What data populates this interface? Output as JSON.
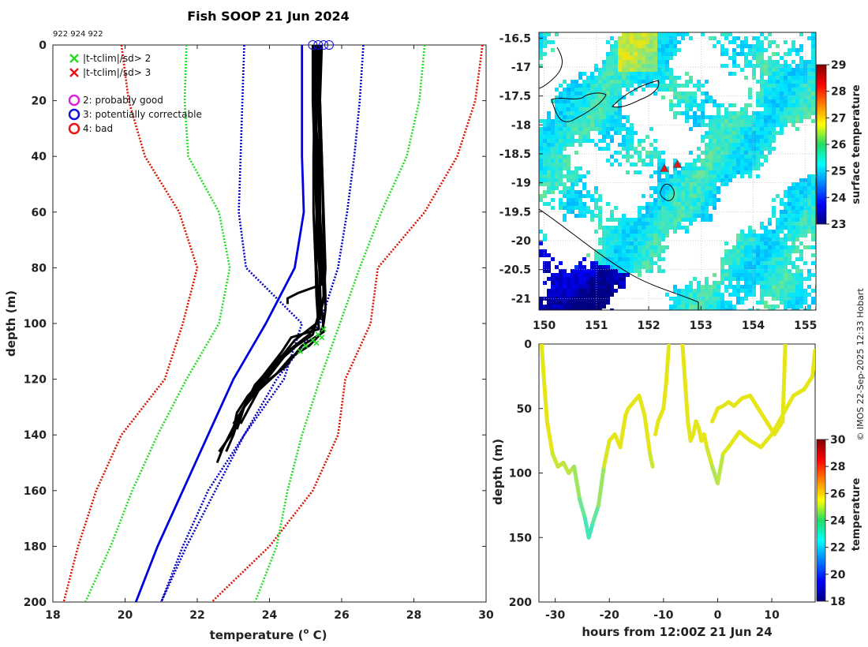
{
  "title": "Fish SOOP 21 Jun 2024",
  "platform_ids": "922 924 922",
  "credit": "© IMOS 22-Sep-2025 12:33 Hobart",
  "colors": {
    "clim_mean": "#0000e0",
    "clim_1sd": "#0000c0",
    "clim_2sd": "#22dd22",
    "clim_3sd": "#dd1100",
    "profile": "#000000",
    "flag_x2": "#22dd22",
    "flag_x3": "#ee1111",
    "good": "#dd22dd",
    "correctable": "#1010e0",
    "bad": "#ee1111"
  },
  "legend": {
    "x2": "|t-tclim|/sd> 2",
    "x3": "|t-tclim|/sd> 3",
    "q2": "2: probably good",
    "q3": "3: potentially correctable",
    "q4": "4: bad"
  },
  "chart_data": [
    {
      "type": "line",
      "name": "profile",
      "xlabel": "temperature (o C)",
      "ylabel": "depth (m)",
      "xlim": [
        18,
        30
      ],
      "ylim": [
        200,
        0
      ],
      "xticks": [
        18,
        20,
        22,
        24,
        26,
        28,
        30
      ],
      "yticks": [
        0,
        20,
        40,
        60,
        80,
        100,
        120,
        140,
        160,
        180,
        200
      ],
      "climatology": {
        "depth": [
          0,
          20,
          40,
          60,
          80,
          100,
          120,
          140,
          160,
          180,
          200
        ],
        "mean": [
          24.9,
          24.9,
          24.9,
          24.95,
          24.7,
          23.9,
          23.0,
          22.3,
          21.6,
          20.9,
          20.3
        ],
        "minus_1sd": [
          23.3,
          23.25,
          23.2,
          23.15,
          23.35,
          24.9,
          24.4,
          23.3,
          22.5,
          21.7,
          21.0
        ],
        "plus_1sd": [
          26.6,
          26.5,
          26.35,
          26.15,
          25.9,
          25.4,
          24.2,
          23.3,
          22.3,
          21.6,
          21.0
        ],
        "minus_2sd": [
          21.7,
          21.65,
          21.75,
          22.6,
          22.9,
          22.6,
          21.7,
          20.9,
          20.2,
          19.6,
          18.9
        ],
        "plus_2sd": [
          28.3,
          28.15,
          27.8,
          27.1,
          26.5,
          25.95,
          25.4,
          24.9,
          24.5,
          24.2,
          23.6
        ],
        "minus_3sd": [
          19.9,
          20.1,
          20.55,
          21.5,
          22.0,
          21.6,
          21.1,
          19.9,
          19.2,
          18.7,
          18.3
        ],
        "plus_3sd": [
          29.9,
          29.7,
          29.2,
          28.3,
          27.0,
          26.8,
          26.1,
          25.9,
          25.2,
          24.0,
          22.4
        ]
      },
      "profiles": [
        {
          "temp": [
            25.3,
            25.25,
            25.22,
            25.22,
            25.28,
            25.3,
            25.32,
            25.34,
            25.37,
            24.6,
            24.35,
            23.75,
            23.3,
            23.05,
            22.7,
            22.55
          ],
          "depth": [
            0,
            20,
            40,
            60,
            80,
            90,
            94,
            98,
            102,
            105,
            110,
            120,
            130,
            136,
            145,
            150
          ]
        },
        {
          "temp": [
            25.35,
            25.3,
            25.3,
            25.35,
            25.4,
            25.4,
            25.45,
            25.48,
            25.5,
            24.9,
            24.4,
            23.5,
            23.2,
            23.05,
            22.6
          ],
          "depth": [
            0,
            20,
            40,
            60,
            80,
            90,
            95,
            99,
            103,
            108,
            116,
            125,
            132,
            138,
            146
          ]
        },
        {
          "temp": [
            25.45,
            25.4,
            25.45,
            25.48,
            25.52,
            25.55,
            25.55,
            25.5,
            25.4,
            25.1,
            24.6,
            24.2,
            23.7,
            23.45,
            23.2
          ],
          "depth": [
            0,
            20,
            40,
            60,
            80,
            90,
            95,
            100,
            104,
            108,
            112,
            118,
            124,
            130,
            136
          ]
        },
        {
          "temp": [
            25.3,
            25.25,
            25.35,
            25.4,
            25.48,
            25.5,
            25.45,
            25.4,
            25.1,
            24.5,
            23.9,
            23.4,
            23.1,
            23.0
          ],
          "depth": [
            0,
            20,
            40,
            60,
            80,
            90,
            94,
            98,
            104,
            110,
            119,
            126,
            132,
            138
          ]
        },
        {
          "temp": [
            25.35,
            25.35,
            25.4,
            25.4,
            25.45,
            25.45,
            24.8,
            24.5,
            24.5
          ],
          "depth": [
            0,
            20,
            40,
            60,
            80,
            86,
            89,
            91,
            93
          ]
        },
        {
          "temp": [
            25.2,
            25.2,
            25.25,
            25.3,
            25.3,
            25.35,
            25.4,
            25.1,
            24.4,
            23.8,
            23.3,
            23.0
          ],
          "depth": [
            0,
            20,
            40,
            60,
            80,
            90,
            98,
            104,
            112,
            122,
            130,
            136
          ]
        },
        {
          "temp": [
            25.4,
            25.4,
            25.45,
            25.5,
            25.55,
            25.5,
            25.3,
            24.7,
            24.2,
            23.6,
            23.2,
            23.0,
            22.8
          ],
          "depth": [
            0,
            20,
            40,
            60,
            80,
            92,
            100,
            106,
            114,
            124,
            132,
            140,
            146
          ]
        },
        {
          "temp": [
            25.25,
            25.25,
            25.3,
            25.3,
            25.38,
            25.42,
            25.2,
            24.3,
            23.6,
            23.3,
            23.1
          ],
          "depth": [
            0,
            20,
            40,
            60,
            80,
            94,
            104,
            112,
            122,
            130,
            138
          ]
        }
      ],
      "surface_flags": [
        {
          "temp": 25.2,
          "depth": 0
        },
        {
          "temp": 25.35,
          "depth": 0
        },
        {
          "temp": 25.5,
          "depth": 0
        },
        {
          "temp": 25.65,
          "depth": 0
        }
      ],
      "flag_points_2sd": [
        {
          "temp": 25.5,
          "depth": 102
        },
        {
          "temp": 25.35,
          "depth": 104
        },
        {
          "temp": 25.2,
          "depth": 106
        },
        {
          "temp": 25.0,
          "depth": 108
        },
        {
          "temp": 24.85,
          "depth": 110
        },
        {
          "temp": 25.45,
          "depth": 105
        },
        {
          "temp": 25.3,
          "depth": 107
        }
      ]
    },
    {
      "type": "heatmap",
      "name": "map",
      "xlim": [
        149.9,
        155.2
      ],
      "ylim": [
        -21.2,
        -16.4
      ],
      "xticks": [
        150,
        151,
        152,
        153,
        154,
        155
      ],
      "yticks": [
        -16.5,
        -17,
        -17.5,
        -18,
        -18.5,
        -19,
        -19.5,
        -20,
        -20.5,
        -21
      ],
      "colorbar": {
        "label": "surface temperature",
        "min": 23,
        "max": 29,
        "ticks": [
          23,
          24,
          25,
          26,
          27,
          28,
          29
        ]
      },
      "triangles": [
        {
          "lon": 152.3,
          "lat": -18.75
        },
        {
          "lon": 152.55,
          "lat": -18.68
        }
      ]
    },
    {
      "type": "scatter",
      "name": "timeseries",
      "xlabel": "hours from 12:00Z 21 Jun 24",
      "ylabel": "depth (m)",
      "xlim": [
        -33,
        18
      ],
      "ylim": [
        200,
        0
      ],
      "xticks": [
        -30,
        -20,
        -10,
        0,
        10
      ],
      "yticks": [
        0,
        50,
        100,
        150,
        200
      ],
      "colorbar": {
        "label": "temperature",
        "min": 18,
        "max": 30,
        "ticks": [
          18,
          20,
          22,
          24,
          26,
          28,
          30
        ]
      },
      "segments": [
        {
          "hours": [
            -32.5,
            -32.2,
            -31.5,
            -30.5,
            -29.5,
            -28.5,
            -27.5,
            -26.5,
            -25.5,
            -24.5,
            -23.8,
            -23.0,
            -22.0,
            -21.0,
            -20.0,
            -19.0,
            -18.0,
            -17.0,
            -16.5,
            -15.5,
            -14.5,
            -13.5,
            -12.5,
            -12.0
          ],
          "depth": [
            0,
            20,
            60,
            85,
            95,
            92,
            100,
            95,
            120,
            135,
            150,
            138,
            125,
            95,
            75,
            70,
            80,
            55,
            50,
            45,
            40,
            55,
            85,
            95
          ]
        },
        {
          "hours": [
            -11.5,
            -11.0,
            -10.5,
            -10.0,
            -9.5,
            -9.0
          ],
          "depth": [
            70,
            60,
            55,
            50,
            30,
            0
          ]
        },
        {
          "hours": [
            -6.5,
            -6.0,
            -5.5,
            -5.0,
            -4.5,
            -4.0,
            -3.5,
            -3.0,
            -2.5,
            -2.0,
            -1.0,
            0.0,
            1.0,
            2.0,
            4.0,
            6.0,
            8.0,
            10.0,
            12.0,
            14.0,
            16.0,
            17.5,
            18.0
          ],
          "depth": [
            0,
            30,
            60,
            75,
            70,
            60,
            65,
            75,
            70,
            80,
            95,
            108,
            85,
            80,
            68,
            75,
            80,
            70,
            55,
            40,
            35,
            25,
            5
          ]
        },
        {
          "hours": [
            -1.0,
            0.0,
            1.0,
            2.0,
            3.0,
            4.5,
            6.0,
            7.5,
            9.0,
            10.5,
            12.0,
            12.5
          ],
          "depth": [
            60,
            50,
            48,
            45,
            48,
            42,
            40,
            50,
            60,
            70,
            60,
            0
          ]
        }
      ]
    }
  ]
}
